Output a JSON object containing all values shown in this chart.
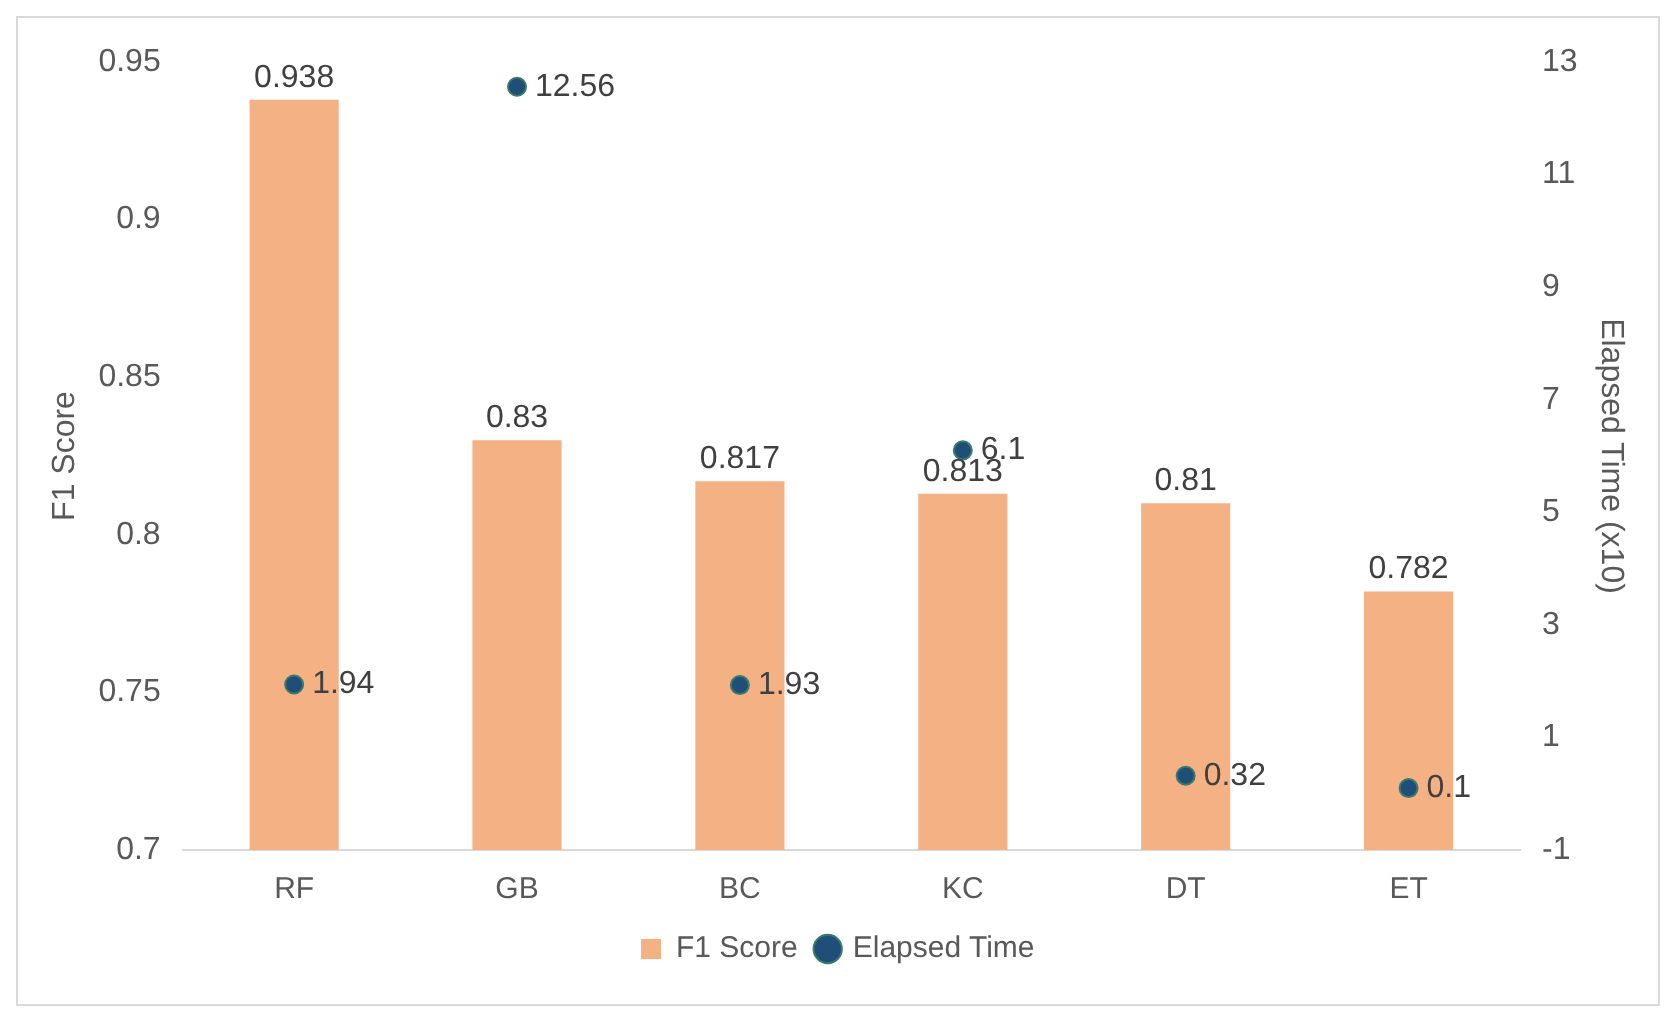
{
  "chart_data": {
    "type": "bar",
    "categories": [
      "RF",
      "GB",
      "BC",
      "KC",
      "DT",
      "ET"
    ],
    "ylabel": "F1 Score",
    "y2label": "Elapsed Time (x10)",
    "series": [
      {
        "name": "F1 Score",
        "color": "#f4b183",
        "values": [
          0.938,
          0.83,
          0.817,
          0.813,
          0.81,
          0.782
        ]
      },
      {
        "name": "Elapsed Time",
        "type": "scatter",
        "axis": "y2",
        "color": "#1f4e79",
        "values": [
          1.94,
          12.56,
          1.93,
          6.1,
          0.32,
          0.1
        ]
      }
    ],
    "ylim": [
      0.7,
      0.95
    ],
    "yticks": [
      0.7,
      0.75,
      0.8,
      0.85,
      0.9,
      0.95
    ],
    "y2lim": [
      -1,
      13
    ],
    "y2ticks": [
      -1,
      1,
      3,
      5,
      7,
      9,
      11,
      13
    ],
    "data_labels": true,
    "grid": false,
    "legend": "bottom",
    "marker": "circle"
  }
}
